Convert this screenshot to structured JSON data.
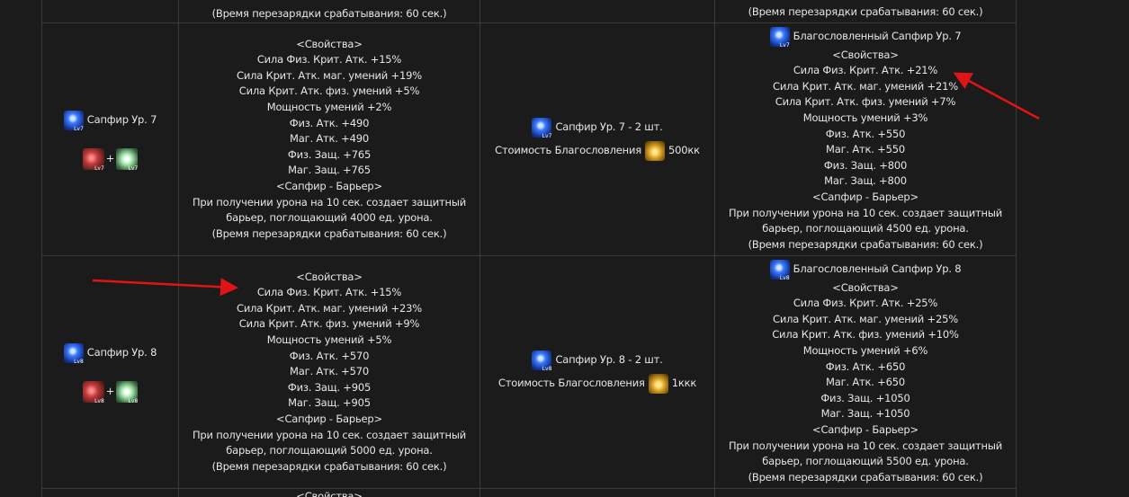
{
  "top_partial": {
    "properties_lines": [
      "(Время перезарядки срабатывания: 60 сек.)"
    ],
    "result_lines": [
      "(Время перезарядки срабатывания: 60 сек.)"
    ]
  },
  "rows": [
    {
      "item": {
        "name": "Сапфир Ур. 7",
        "badge": "Lv7"
      },
      "combo": {
        "badges": [
          "Lv7",
          "Lv7"
        ],
        "plus": "+"
      },
      "properties": [
        "<Свойства>",
        "Сила Физ. Крит. Атк. +15%",
        "Сила Крит. Атк. маг. умений +19%",
        "Сила Крит. Атк. физ. умений +5%",
        "Мощность умений +2%",
        "Физ. Атк. +490",
        "Маг. Атк. +490",
        "Физ. Защ. +765",
        "Маг. Защ. +765",
        "<Сапфир - Барьер>",
        "При получении урона на 10 сек. создает защитный",
        "барьер, поглощающий 4000 ед. урона.",
        "(Время перезарядки срабатывания: 60 сек.)"
      ],
      "materials": {
        "item": "Сапфир Ур. 7 - 2 шт.",
        "badge": "Lv7",
        "cost_label": "Стоимость Благословления",
        "cost": "500кк"
      },
      "result": {
        "title": "Благословленный Сапфир Ур. 7",
        "badge": "Lv7",
        "lines": [
          "<Свойства>",
          "Сила Физ. Крит. Атк. +21%",
          "Сила Крит. Атк. маг. умений +21%",
          "Сила Крит. Атк. физ. умений +7%",
          "Мощность умений +3%",
          "Физ. Атк. +550",
          "Маг. Атк. +550",
          "Физ. Защ. +800",
          "Маг. Защ. +800",
          "<Сапфир - Барьер>",
          "При получении урона на 10 сек. создает защитный",
          "барьер, поглощающий 4500 ед. урона.",
          "(Время перезарядки срабатывания: 60 сек.)"
        ]
      }
    },
    {
      "item": {
        "name": "Сапфир Ур. 8",
        "badge": "Lv8"
      },
      "combo": {
        "badges": [
          "Lv8",
          "Lv8"
        ],
        "plus": "+"
      },
      "properties": [
        "<Свойства>",
        "Сила Физ. Крит. Атк. +15%",
        "Сила Крит. Атк. маг. умений +23%",
        "Сила Крит. Атк. физ. умений +9%",
        "Мощность умений +5%",
        "Физ. Атк. +570",
        "Маг. Атк. +570",
        "Физ. Защ. +905",
        "Маг. Защ. +905",
        "<Сапфир - Барьер>",
        "При получении урона на 10 сек. создает защитный",
        "барьер, поглощающий 5000 ед. урона.",
        "(Время перезарядки срабатывания: 60 сек.)"
      ],
      "materials": {
        "item": "Сапфир Ур. 8 - 2 шт.",
        "badge": "Lv8",
        "cost_label": "Стоимость Благословления",
        "cost": "1ккк"
      },
      "result": {
        "title": "Благословленный Сапфир Ур. 8",
        "badge": "Lv8",
        "lines": [
          "<Свойства>",
          "Сила Физ. Крит. Атк. +25%",
          "Сила Крит. Атк. маг. умений +25%",
          "Сила Крит. Атк. физ. умений +10%",
          "Мощность умений +6%",
          "Физ. Атк. +650",
          "Маг. Атк. +650",
          "Физ. Защ. +1050",
          "Маг. Защ. +1050",
          "<Сапфир - Барьер>",
          "При получении урона на 10 сек. создает защитный",
          "барьер, поглощающий 5500 ед. урона.",
          "(Время перезарядки срабатывания: 60 сек.)"
        ]
      }
    }
  ],
  "bottom_partial": {
    "properties_lines": [
      "<Свойства>"
    ]
  }
}
